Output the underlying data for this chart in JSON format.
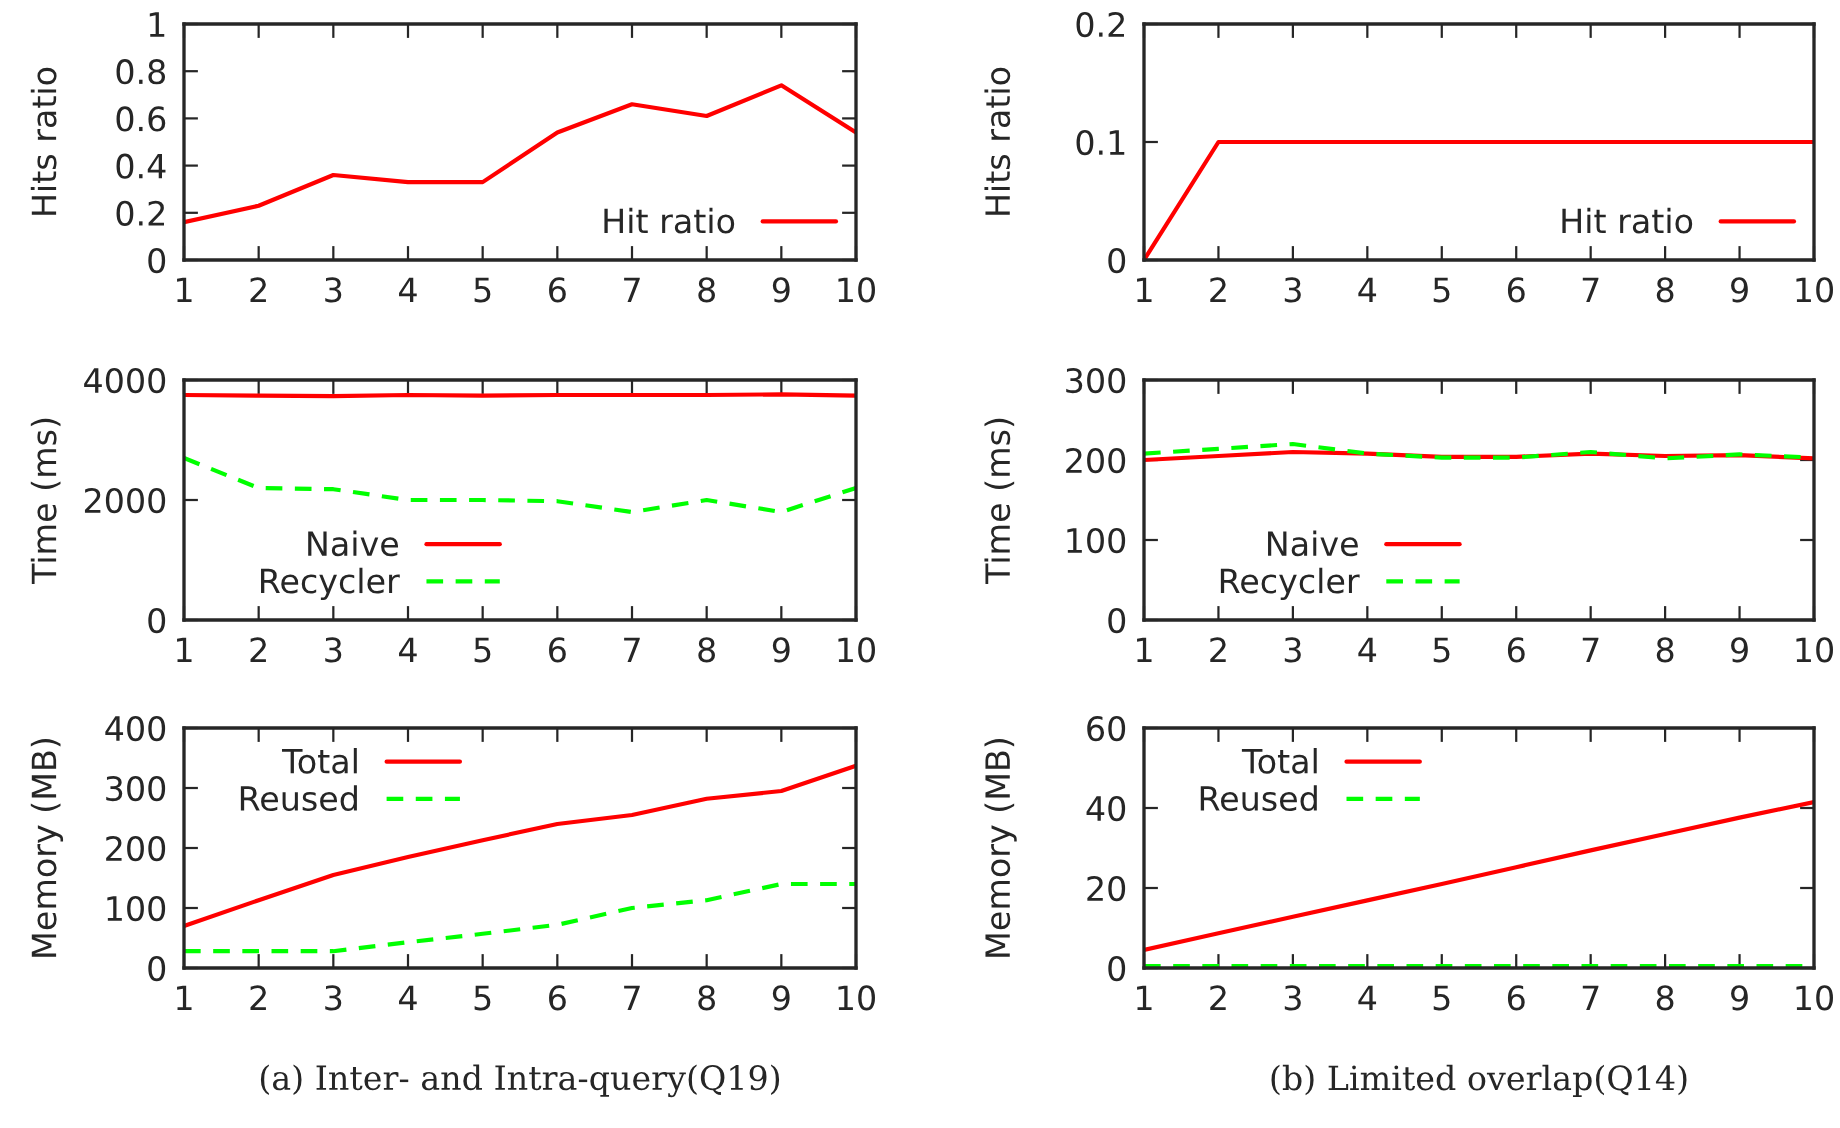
{
  "chart_data": [
    {
      "type": "line",
      "ylabel": "Hits ratio",
      "x": [
        1,
        2,
        3,
        4,
        5,
        6,
        7,
        8,
        9,
        10
      ],
      "xlim": [
        1,
        10
      ],
      "xticks": [
        1,
        2,
        3,
        4,
        5,
        6,
        7,
        8,
        9,
        10
      ],
      "ylim": [
        0,
        1
      ],
      "yticks": [
        0,
        0.2,
        0.4,
        0.6,
        0.8,
        1
      ],
      "legend": "bottom right",
      "series": [
        {
          "name": "Hit ratio",
          "color": "#ff0000",
          "line_style": "solid",
          "values": [
            0.16,
            0.23,
            0.36,
            0.33,
            0.33,
            0.54,
            0.66,
            0.61,
            0.74,
            0.54
          ]
        }
      ]
    },
    {
      "type": "line",
      "ylabel": "Hits ratio",
      "x": [
        1,
        2,
        3,
        4,
        5,
        6,
        7,
        8,
        9,
        10
      ],
      "xlim": [
        1,
        10
      ],
      "xticks": [
        1,
        2,
        3,
        4,
        5,
        6,
        7,
        8,
        9,
        10
      ],
      "ylim": [
        0,
        0.2
      ],
      "yticks": [
        0,
        0.1,
        0.2
      ],
      "legend": "bottom right",
      "series": [
        {
          "name": "Hit ratio",
          "color": "#ff0000",
          "line_style": "solid",
          "values": [
            0,
            0.1,
            0.1,
            0.1,
            0.1,
            0.1,
            0.1,
            0.1,
            0.1,
            0.1
          ]
        }
      ]
    },
    {
      "type": "line",
      "ylabel": "Time (ms)",
      "x": [
        1,
        2,
        3,
        4,
        5,
        6,
        7,
        8,
        9,
        10
      ],
      "xlim": [
        1,
        10
      ],
      "xticks": [
        1,
        2,
        3,
        4,
        5,
        6,
        7,
        8,
        9,
        10
      ],
      "ylim": [
        0,
        4000
      ],
      "yticks": [
        0,
        2000,
        4000
      ],
      "legend": "bottom left",
      "series": [
        {
          "name": "Naive",
          "color": "#ff0000",
          "line_style": "solid",
          "values": [
            3750,
            3740,
            3730,
            3750,
            3740,
            3750,
            3750,
            3750,
            3760,
            3740
          ]
        },
        {
          "name": "Recycler",
          "color": "#00ff00",
          "line_style": "dashed",
          "values": [
            2700,
            2200,
            2180,
            2000,
            2000,
            1980,
            1800,
            2000,
            1800,
            2200
          ]
        }
      ]
    },
    {
      "type": "line",
      "ylabel": "Time (ms)",
      "x": [
        1,
        2,
        3,
        4,
        5,
        6,
        7,
        8,
        9,
        10
      ],
      "xlim": [
        1,
        10
      ],
      "xticks": [
        1,
        2,
        3,
        4,
        5,
        6,
        7,
        8,
        9,
        10
      ],
      "ylim": [
        0,
        300
      ],
      "yticks": [
        0,
        100,
        200,
        300
      ],
      "legend": "bottom left",
      "series": [
        {
          "name": "Naive",
          "color": "#ff0000",
          "line_style": "solid",
          "values": [
            200,
            205,
            210,
            208,
            204,
            204,
            208,
            205,
            206,
            202
          ]
        },
        {
          "name": "Recycler",
          "color": "#00ff00",
          "line_style": "dashed",
          "values": [
            208,
            214,
            220,
            208,
            203,
            203,
            210,
            202,
            207,
            203
          ]
        }
      ]
    },
    {
      "type": "line",
      "ylabel": "Memory (MB)",
      "x": [
        1,
        2,
        3,
        4,
        5,
        6,
        7,
        8,
        9,
        10
      ],
      "xlim": [
        1,
        10
      ],
      "xticks": [
        1,
        2,
        3,
        4,
        5,
        6,
        7,
        8,
        9,
        10
      ],
      "ylim": [
        0,
        400
      ],
      "yticks": [
        0,
        100,
        200,
        300,
        400
      ],
      "legend": "top left",
      "annotations": [
        "(a) Inter- and Intra-query(Q19)"
      ],
      "series": [
        {
          "name": "Total",
          "color": "#ff0000",
          "line_style": "solid",
          "values": [
            70,
            113,
            155,
            185,
            213,
            240,
            255,
            282,
            295,
            337
          ]
        },
        {
          "name": "Reused",
          "color": "#00ff00",
          "line_style": "dashed",
          "values": [
            28,
            28,
            28,
            43,
            57,
            72,
            100,
            113,
            140,
            140
          ]
        }
      ]
    },
    {
      "type": "line",
      "ylabel": "Memory (MB)",
      "x": [
        1,
        2,
        3,
        4,
        5,
        6,
        7,
        8,
        9,
        10
      ],
      "xlim": [
        1,
        10
      ],
      "xticks": [
        1,
        2,
        3,
        4,
        5,
        6,
        7,
        8,
        9,
        10
      ],
      "ylim": [
        0,
        60
      ],
      "yticks": [
        0,
        20,
        40,
        60
      ],
      "legend": "top left",
      "annotations": [
        "(b) Limited overlap(Q14)"
      ],
      "series": [
        {
          "name": "Total",
          "color": "#ff0000",
          "line_style": "solid",
          "values": [
            4.5,
            8.7,
            12.8,
            16.9,
            21,
            25.2,
            29.4,
            33.5,
            37.6,
            41.5
          ]
        },
        {
          "name": "Reused",
          "color": "#00ff00",
          "line_style": "dashed",
          "values": [
            0.5,
            0.5,
            0.5,
            0.5,
            0.5,
            0.5,
            0.5,
            0.5,
            0.5,
            0.5
          ]
        }
      ]
    }
  ]
}
